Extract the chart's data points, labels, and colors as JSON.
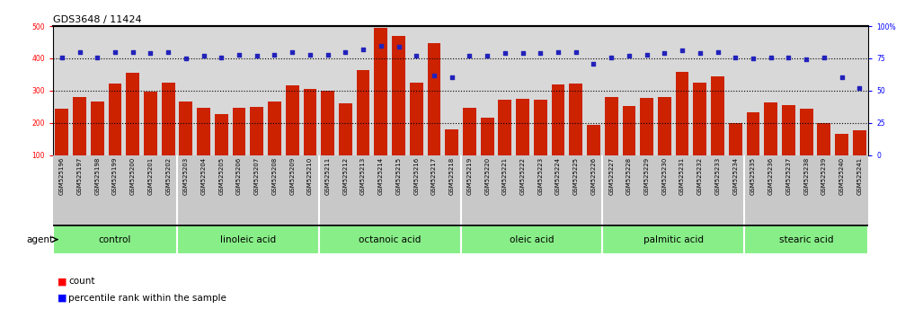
{
  "title": "GDS3648 / 11424",
  "samples": [
    "GSM525196",
    "GSM525197",
    "GSM525198",
    "GSM525199",
    "GSM525200",
    "GSM525201",
    "GSM525202",
    "GSM525203",
    "GSM525204",
    "GSM525205",
    "GSM525206",
    "GSM525207",
    "GSM525208",
    "GSM525209",
    "GSM525210",
    "GSM525211",
    "GSM525212",
    "GSM525213",
    "GSM525214",
    "GSM525215",
    "GSM525216",
    "GSM525217",
    "GSM525218",
    "GSM525219",
    "GSM525220",
    "GSM525221",
    "GSM525222",
    "GSM525223",
    "GSM525224",
    "GSM525225",
    "GSM525226",
    "GSM525227",
    "GSM525228",
    "GSM525229",
    "GSM525230",
    "GSM525231",
    "GSM525232",
    "GSM525233",
    "GSM525234",
    "GSM525235",
    "GSM525236",
    "GSM525237",
    "GSM525238",
    "GSM525239",
    "GSM525240",
    "GSM525241"
  ],
  "counts": [
    243,
    280,
    267,
    322,
    354,
    296,
    325,
    265,
    247,
    228,
    247,
    249,
    265,
    315,
    305,
    300,
    260,
    365,
    495,
    470,
    325,
    448,
    180,
    247,
    215,
    272,
    275,
    271,
    318,
    321,
    193,
    280,
    252,
    276,
    280,
    358,
    325,
    343,
    200,
    232,
    263,
    256,
    243,
    198,
    165,
    177
  ],
  "percentile_ranks": [
    76,
    80,
    76,
    80,
    80,
    79,
    80,
    75,
    77,
    76,
    78,
    77,
    78,
    80,
    78,
    78,
    80,
    82,
    85,
    84,
    77,
    62,
    60,
    77,
    77,
    79,
    79,
    79,
    80,
    80,
    71,
    76,
    77,
    78,
    79,
    81,
    79,
    80,
    76,
    75,
    76,
    76,
    74,
    76,
    60,
    52
  ],
  "groups": [
    {
      "name": "control",
      "start": 0,
      "end": 7
    },
    {
      "name": "linoleic acid",
      "start": 7,
      "end": 15
    },
    {
      "name": "octanoic acid",
      "start": 15,
      "end": 23
    },
    {
      "name": "oleic acid",
      "start": 23,
      "end": 31
    },
    {
      "name": "palmitic acid",
      "start": 31,
      "end": 39
    },
    {
      "name": "stearic acid",
      "start": 39,
      "end": 46
    }
  ],
  "bar_color": "#CC2200",
  "dot_color": "#2222BB",
  "ylim_left": [
    100,
    500
  ],
  "ylim_right": [
    0,
    100
  ],
  "yticks_left": [
    100,
    200,
    300,
    400,
    500
  ],
  "yticks_right": [
    0,
    25,
    50,
    75,
    100
  ],
  "ytick_right_labels": [
    "0",
    "25",
    "50",
    "75",
    "100%"
  ],
  "hlines": [
    200,
    300,
    400
  ],
  "plot_bg": "#d8d8d8",
  "xtick_bg": "#c8c8c8",
  "group_color": "#88ee88",
  "group_border": "white",
  "group_top_border": "#222222",
  "title_fontsize": 8,
  "bar_tick_fontsize": 5.5,
  "xtick_fontsize": 5.0,
  "group_fontsize": 7.5,
  "legend_fontsize": 7.5,
  "agent_label": "agent",
  "legend_count": "count",
  "legend_pct": "percentile rank within the sample"
}
